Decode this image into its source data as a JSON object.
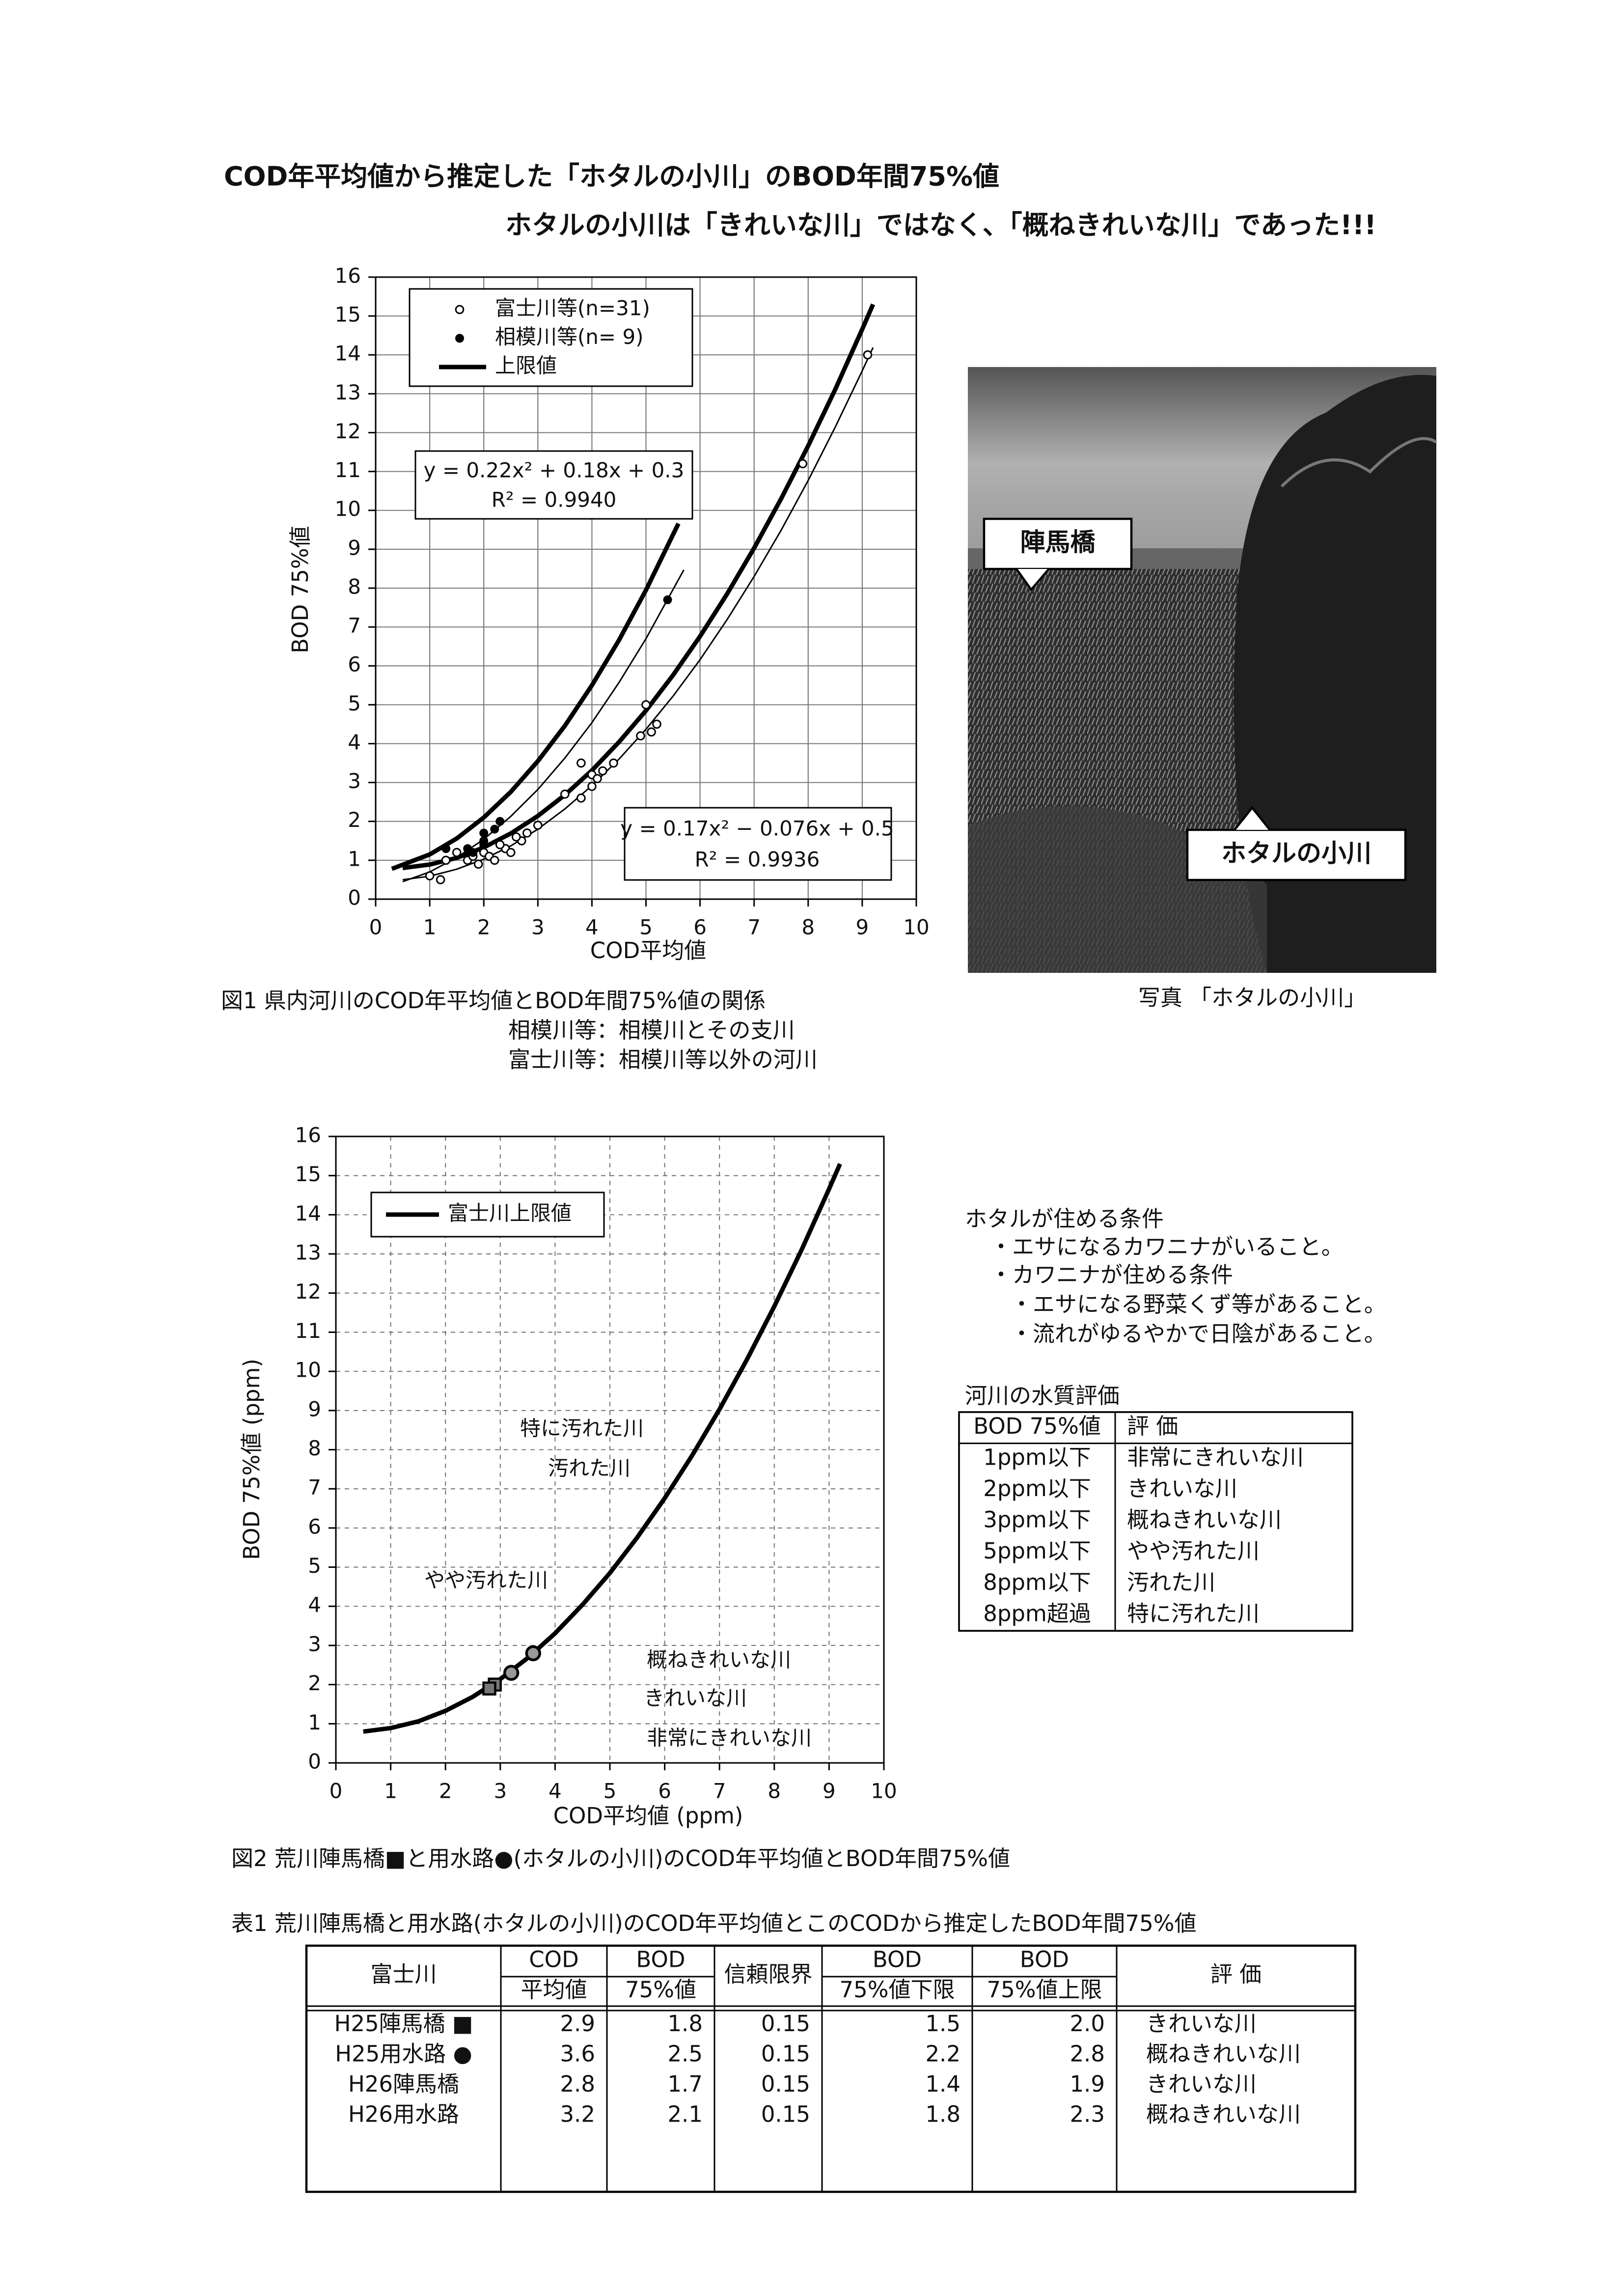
{
  "header": {
    "title": "COD年平均値から推定した「ホタルの小川」のBOD年間75%値",
    "subtitle": "ホタルの小川は「きれいな川」ではなく、「概ねきれいな川」であった!!!"
  },
  "chart_data": [
    {
      "type": "scatter",
      "y_label": "BOD 75%値",
      "x_label": "COD平均値",
      "xlim": [
        0,
        10
      ],
      "ylim": [
        0,
        16
      ],
      "xticks": [
        0,
        1,
        2,
        3,
        4,
        5,
        6,
        7,
        8,
        9,
        10
      ],
      "yticks": [
        0,
        1,
        2,
        3,
        4,
        5,
        6,
        7,
        8,
        9,
        10,
        11,
        12,
        13,
        14,
        15,
        16
      ],
      "grid": true,
      "series": [
        {
          "name": "富士川等(n=31)",
          "color": "#000000",
          "marker": "open",
          "x": [
            1,
            1.2,
            1.3,
            1.7,
            1.8,
            2.0,
            2.1,
            2.2,
            2.4,
            2.5,
            2.7,
            2.8,
            3.5,
            3.8,
            3.8,
            4.0,
            4.0,
            4.1,
            4.4,
            4.9,
            5.0,
            5.1,
            5.2,
            7.9,
            9.1,
            1.5,
            1.9,
            2.3,
            3.0,
            2.6,
            4.2
          ],
          "values": [
            0.6,
            0.5,
            1.0,
            1.0,
            1.1,
            1.2,
            1.1,
            1.0,
            1.3,
            1.2,
            1.5,
            1.7,
            2.7,
            2.6,
            3.5,
            2.9,
            3.2,
            3.1,
            3.5,
            4.2,
            5.0,
            4.3,
            4.5,
            11.2,
            14.0,
            1.2,
            0.9,
            1.4,
            1.9,
            1.6,
            3.3
          ]
        },
        {
          "name": "相模川等(n= 9)",
          "color": "#000000",
          "marker": "filled",
          "x": [
            1.3,
            1.7,
            2.0,
            2.0,
            2.3,
            2.2,
            1.8,
            2.0,
            5.4
          ],
          "values": [
            1.3,
            1.3,
            1.5,
            1.7,
            2.0,
            1.8,
            1.2,
            1.4,
            7.7
          ]
        }
      ],
      "lines": [
        {
          "name": "上限値",
          "color": "#000000",
          "width": 3,
          "x": [
            0.5,
            1,
            1.5,
            2,
            2.5,
            3,
            3.5,
            4,
            4.5,
            5,
            5.5,
            6,
            6.5,
            7,
            7.5,
            8,
            8.5,
            9,
            9.2
          ],
          "values": [
            0.8,
            0.89,
            1.06,
            1.33,
            1.69,
            2.14,
            2.68,
            3.31,
            4.04,
            4.85,
            5.76,
            6.76,
            7.85,
            9.03,
            10.3,
            11.66,
            13.11,
            14.66,
            15.3
          ]
        },
        {
          "color": "#000000",
          "width": 3,
          "x": [
            0.3,
            1,
            1.5,
            2,
            2.5,
            3,
            3.5,
            4,
            4.5,
            5,
            5.6
          ],
          "values": [
            0.78,
            1.15,
            1.56,
            2.1,
            2.76,
            3.55,
            4.46,
            5.5,
            6.66,
            7.95,
            9.66
          ]
        },
        {
          "color": "#000000",
          "width": 1,
          "x": [
            0.5,
            1,
            1.5,
            2,
            2.5,
            3,
            3.5,
            4,
            4.5,
            5,
            5.7
          ],
          "values": [
            0.45,
            0.7,
            1.07,
            1.54,
            2.13,
            2.82,
            3.63,
            4.54,
            5.57,
            6.7,
            8.47
          ]
        },
        {
          "color": "#000000",
          "width": 1,
          "x": [
            0.5,
            1,
            1.5,
            2,
            2.5,
            3,
            3.5,
            4,
            4.5,
            5,
            5.5,
            6,
            6.5,
            7,
            7.5,
            8,
            8.5,
            9,
            9.2
          ],
          "values": [
            0.5,
            0.59,
            0.77,
            1.03,
            1.37,
            1.8,
            2.32,
            2.92,
            3.6,
            4.37,
            5.22,
            6.16,
            7.19,
            8.3,
            9.49,
            10.77,
            12.14,
            13.59,
            14.19
          ]
        }
      ],
      "annotations": [
        "y = 0.22x² + 0.18x + 0.3",
        "R² = 0.9940",
        "y = 0.17x² − 0.076x + 0.5",
        "R² = 0.9936"
      ],
      "caption": "図1  県内河川のCOD年平均値とBOD年間75%値の関係",
      "notes": [
        "相模川等：相模川とその支川",
        "富士川等：相模川等以外の河川"
      ]
    },
    {
      "type": "scatter",
      "y_label": "BOD 75%値 (ppm)",
      "x_label": "COD平均値 (ppm)",
      "xlim": [
        0,
        10
      ],
      "ylim": [
        0,
        16
      ],
      "xticks": [
        0,
        1,
        2,
        3,
        4,
        5,
        6,
        7,
        8,
        9,
        10
      ],
      "yticks": [
        0,
        1,
        2,
        3,
        4,
        5,
        6,
        7,
        8,
        9,
        10,
        11,
        12,
        13,
        14,
        15,
        16
      ],
      "grid": true,
      "series": [
        {
          "color": "#000000",
          "marker": "square",
          "x": [
            2.9,
            2.8
          ],
          "values": [
            2.0,
            1.9
          ]
        },
        {
          "color": "#000000",
          "marker": "circle",
          "x": [
            3.6,
            3.2
          ],
          "values": [
            2.8,
            2.3
          ]
        }
      ],
      "lines": [
        {
          "name": "富士川上限値",
          "color": "#000000",
          "width": 3,
          "x": [
            0.5,
            1,
            1.5,
            2,
            2.5,
            3,
            3.5,
            4,
            4.5,
            5,
            5.5,
            6,
            6.5,
            7,
            7.5,
            8,
            8.5,
            9,
            9.2
          ],
          "values": [
            0.8,
            0.89,
            1.06,
            1.33,
            1.69,
            2.14,
            2.68,
            3.31,
            4.04,
            4.85,
            5.76,
            6.76,
            7.85,
            9.03,
            10.3,
            11.66,
            13.11,
            14.66,
            15.3
          ]
        }
      ],
      "annotations": [
        "特に汚れた川",
        "汚れた川",
        "やや汚れた川",
        "概ねきれいな川",
        "きれいな川",
        "非常にきれいな川"
      ],
      "caption": "図2  荒川陣馬橋■と用水路●(ホタルの小川)のCOD年平均値とBOD年間75%値"
    }
  ],
  "photo": {
    "caption": "写真 「ホタルの小川」",
    "labels": [
      "陣馬橋",
      "ホタルの小川"
    ]
  },
  "conditions": {
    "title": "ホタルが住める条件",
    "items": [
      "・エサになるカワニナがいること。",
      "・カワニナが住める条件",
      "・エサになる野菜くず等があること。",
      "・流れがゆるやかで日陰があること。"
    ]
  },
  "quality_table": {
    "title": "河川の水質評価",
    "header": [
      "BOD 75%値",
      "評 価"
    ],
    "rows": [
      [
        "1ppm以下",
        "非常にきれいな川"
      ],
      [
        "2ppm以下",
        "きれいな川"
      ],
      [
        "3ppm以下",
        "概ねきれいな川"
      ],
      [
        "5ppm以下",
        "やや汚れた川"
      ],
      [
        "8ppm以下",
        "汚れた川"
      ],
      [
        "8ppm超過",
        "特に汚れた川"
      ]
    ]
  },
  "table": {
    "title": "表1  荒川陣馬橋と用水路(ホタルの小川)のCOD年平均値とこのCODから推定したBOD年間75%値",
    "header": [
      [
        "富士川",
        "COD",
        "BOD",
        "信頼限界",
        "BOD",
        "BOD",
        "評 価"
      ],
      [
        "平均値",
        "75%値",
        "75%値下限",
        "75%値上限"
      ]
    ],
    "rows": [
      [
        "H25陣馬橋 ■",
        "2.9",
        "1.8",
        "0.15",
        "1.5",
        "2.0",
        "きれいな川"
      ],
      [
        "H25用水路 ●",
        "3.6",
        "2.5",
        "0.15",
        "2.2",
        "2.8",
        "概ねきれいな川"
      ],
      [
        "H26陣馬橋",
        "2.8",
        "1.7",
        "0.15",
        "1.4",
        "1.9",
        "きれいな川"
      ],
      [
        "H26用水路",
        "3.2",
        "2.1",
        "0.15",
        "1.8",
        "2.3",
        "概ねきれいな川"
      ]
    ]
  }
}
